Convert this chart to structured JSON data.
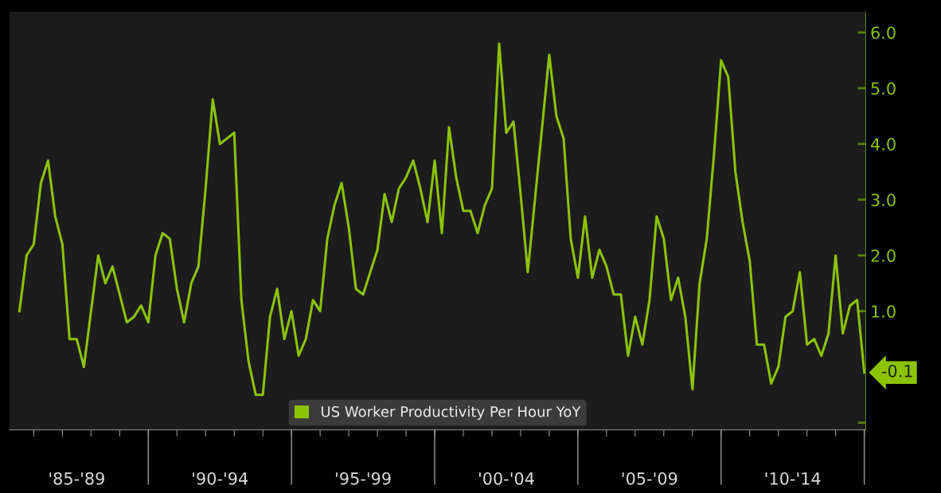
{
  "chart_data": {
    "type": "line",
    "categories": [
      null,
      null,
      null,
      null,
      null,
      null,
      null,
      null,
      "'85-'89",
      null,
      null,
      null,
      null,
      null,
      null,
      null,
      null,
      null,
      null,
      null,
      null,
      null,
      null,
      null,
      null,
      null,
      null,
      null,
      "'90-'94",
      null,
      null,
      null,
      null,
      null,
      null,
      null,
      null,
      null,
      null,
      null,
      null,
      null,
      null,
      null,
      null,
      null,
      null,
      null,
      "'95-'99",
      null,
      null,
      null,
      null,
      null,
      null,
      null,
      null,
      null,
      null,
      null,
      null,
      null,
      null,
      null,
      null,
      null,
      null,
      null,
      "'00-'04",
      null,
      null,
      null,
      null,
      null,
      null,
      null,
      null,
      null,
      null,
      null,
      null,
      null,
      null,
      null,
      null,
      null,
      null,
      null,
      "'05-'09",
      null,
      null,
      null,
      null,
      null,
      null,
      null,
      null,
      null,
      null,
      null,
      null,
      null,
      null,
      null,
      null,
      null,
      null,
      null,
      "'10-'14",
      null,
      null,
      null,
      null,
      null,
      null,
      null,
      null,
      null,
      null
    ],
    "series": [
      {
        "name": "US Worker Productivity Per Hour YoY",
        "color": "#8cc300",
        "values": [
          1.0,
          2.0,
          2.2,
          3.3,
          3.7,
          2.7,
          2.2,
          0.5,
          0.5,
          0.0,
          1.0,
          2.0,
          1.5,
          1.8,
          1.3,
          0.8,
          0.9,
          1.1,
          0.8,
          2.0,
          2.4,
          2.3,
          1.4,
          0.8,
          1.5,
          1.8,
          3.2,
          4.8,
          4.0,
          4.1,
          4.2,
          1.2,
          0.1,
          -0.5,
          -0.5,
          0.9,
          1.4,
          0.5,
          1.0,
          0.2,
          0.5,
          1.2,
          1.0,
          2.3,
          2.9,
          3.3,
          2.5,
          1.4,
          1.3,
          1.7,
          2.1,
          3.1,
          2.6,
          3.2,
          3.4,
          3.7,
          3.2,
          2.6,
          3.7,
          2.4,
          4.3,
          3.4,
          2.8,
          2.8,
          2.4,
          2.9,
          3.2,
          5.8,
          4.2,
          4.4,
          3.1,
          1.7,
          3.0,
          4.3,
          5.6,
          4.5,
          4.1,
          2.3,
          1.6,
          2.7,
          1.6,
          2.1,
          1.8,
          1.3,
          1.3,
          0.2,
          0.9,
          0.4,
          1.2,
          2.7,
          2.3,
          1.2,
          1.6,
          0.9,
          -0.4,
          1.5,
          2.3,
          3.8,
          5.5,
          5.2,
          3.5,
          2.6,
          1.9,
          0.4,
          0.4,
          -0.3,
          0.0,
          0.9,
          1.0,
          1.7,
          0.4,
          0.5,
          0.2,
          0.6,
          2.0,
          0.6,
          1.1,
          1.2,
          -0.1
        ]
      }
    ],
    "ylim": [
      -1.13,
      6.37
    ],
    "yticks": [
      {
        "value": -1,
        "label": null
      },
      {
        "value": 1,
        "label": "1.0"
      },
      {
        "value": 2,
        "label": "2.0"
      },
      {
        "value": 3,
        "label": "3.0"
      },
      {
        "value": 4,
        "label": "4.0"
      },
      {
        "value": 5,
        "label": "5.0"
      },
      {
        "value": 6,
        "label": "6.0"
      }
    ],
    "annotations": [
      "-0.1"
    ],
    "legend": "bottom",
    "grid": false,
    "marker": "none",
    "line_style": "solid"
  }
}
